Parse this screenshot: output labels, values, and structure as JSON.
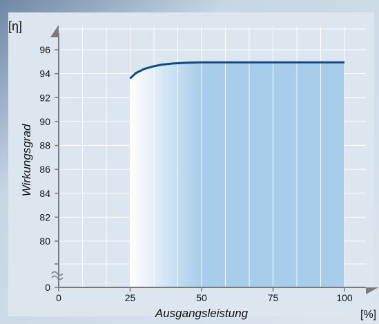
{
  "chart_data": {
    "type": "area",
    "title": "",
    "ylabel": "Wirkungsgrad",
    "xlabel": "Ausgangsleistung",
    "y_unit": "[η]",
    "x_unit": "[%]",
    "xlim": [
      0,
      100
    ],
    "ylim": [
      78,
      97
    ],
    "y_axis_break": true,
    "x_ticks": [
      0,
      25,
      50,
      75,
      100
    ],
    "y_ticks": [
      0,
      80,
      82,
      84,
      86,
      88,
      90,
      92,
      94,
      96
    ],
    "grid": true,
    "series": [
      {
        "x": [
          25,
          27,
          30,
          33,
          36,
          40,
          45,
          50,
          60,
          75,
          90,
          100
        ],
        "y": [
          93.6,
          94.05,
          94.4,
          94.6,
          94.75,
          94.85,
          94.92,
          94.95,
          94.95,
          94.95,
          94.95,
          94.95
        ]
      }
    ],
    "colors": {
      "line": "#0d4a8c",
      "fill": "#a8cdea",
      "grid": "#ffffff",
      "axis": "#7a7a7a"
    }
  }
}
